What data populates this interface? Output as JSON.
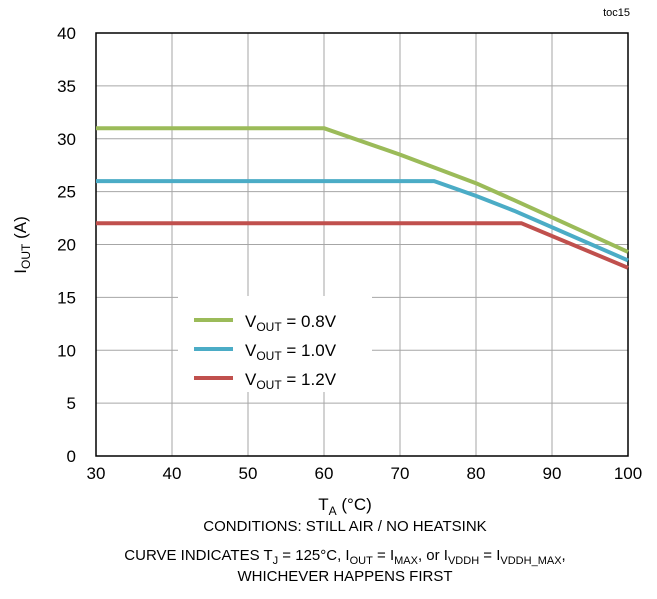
{
  "chart_data": {
    "type": "line",
    "tag": "toc15",
    "xlabel": {
      "main": "T",
      "sub": "A",
      "unit": " (°C)"
    },
    "ylabel": {
      "main": "I",
      "sub": "OUT",
      "unit": " (A)"
    },
    "xlim": [
      30,
      100
    ],
    "ylim": [
      0,
      40
    ],
    "x_ticks": [
      30,
      40,
      50,
      60,
      70,
      80,
      90,
      100
    ],
    "y_ticks": [
      0,
      5,
      10,
      15,
      20,
      25,
      30,
      35,
      40
    ],
    "grid": true,
    "legend_position": "center-left",
    "series": [
      {
        "legend": {
          "main": "V",
          "sub": "OUT",
          "rest": " = 0.8V"
        },
        "color": "#9bbb59",
        "x": [
          30,
          60,
          70,
          80,
          85,
          100
        ],
        "y": [
          31,
          31,
          28.5,
          25.8,
          24.2,
          19.3
        ]
      },
      {
        "legend": {
          "main": "V",
          "sub": "OUT",
          "rest": " = 1.0V"
        },
        "color": "#4bacc6",
        "x": [
          30,
          74.5,
          80,
          85,
          100
        ],
        "y": [
          26,
          26,
          24.6,
          23.2,
          18.5
        ]
      },
      {
        "legend": {
          "main": "V",
          "sub": "OUT",
          "rest": " = 1.2V"
        },
        "color": "#c0504d",
        "x": [
          30,
          86,
          100
        ],
        "y": [
          22,
          22,
          17.8
        ]
      }
    ],
    "notes": {
      "line1": "CONDITIONS:  STILL AIR / NO HEATSINK",
      "line2": {
        "p1": "CURVE INDICATES  T",
        "s1": "J",
        "p2": " = 125°C,  I",
        "s2": "OUT",
        "p3": " = I",
        "s3": "MAX",
        "p4": ",  or I",
        "s4": "VDDH",
        "p5": " = I",
        "s5": "VDDH_MAX",
        "p6": ","
      },
      "line3": "WHICHEVER HAPPENS FIRST"
    }
  }
}
